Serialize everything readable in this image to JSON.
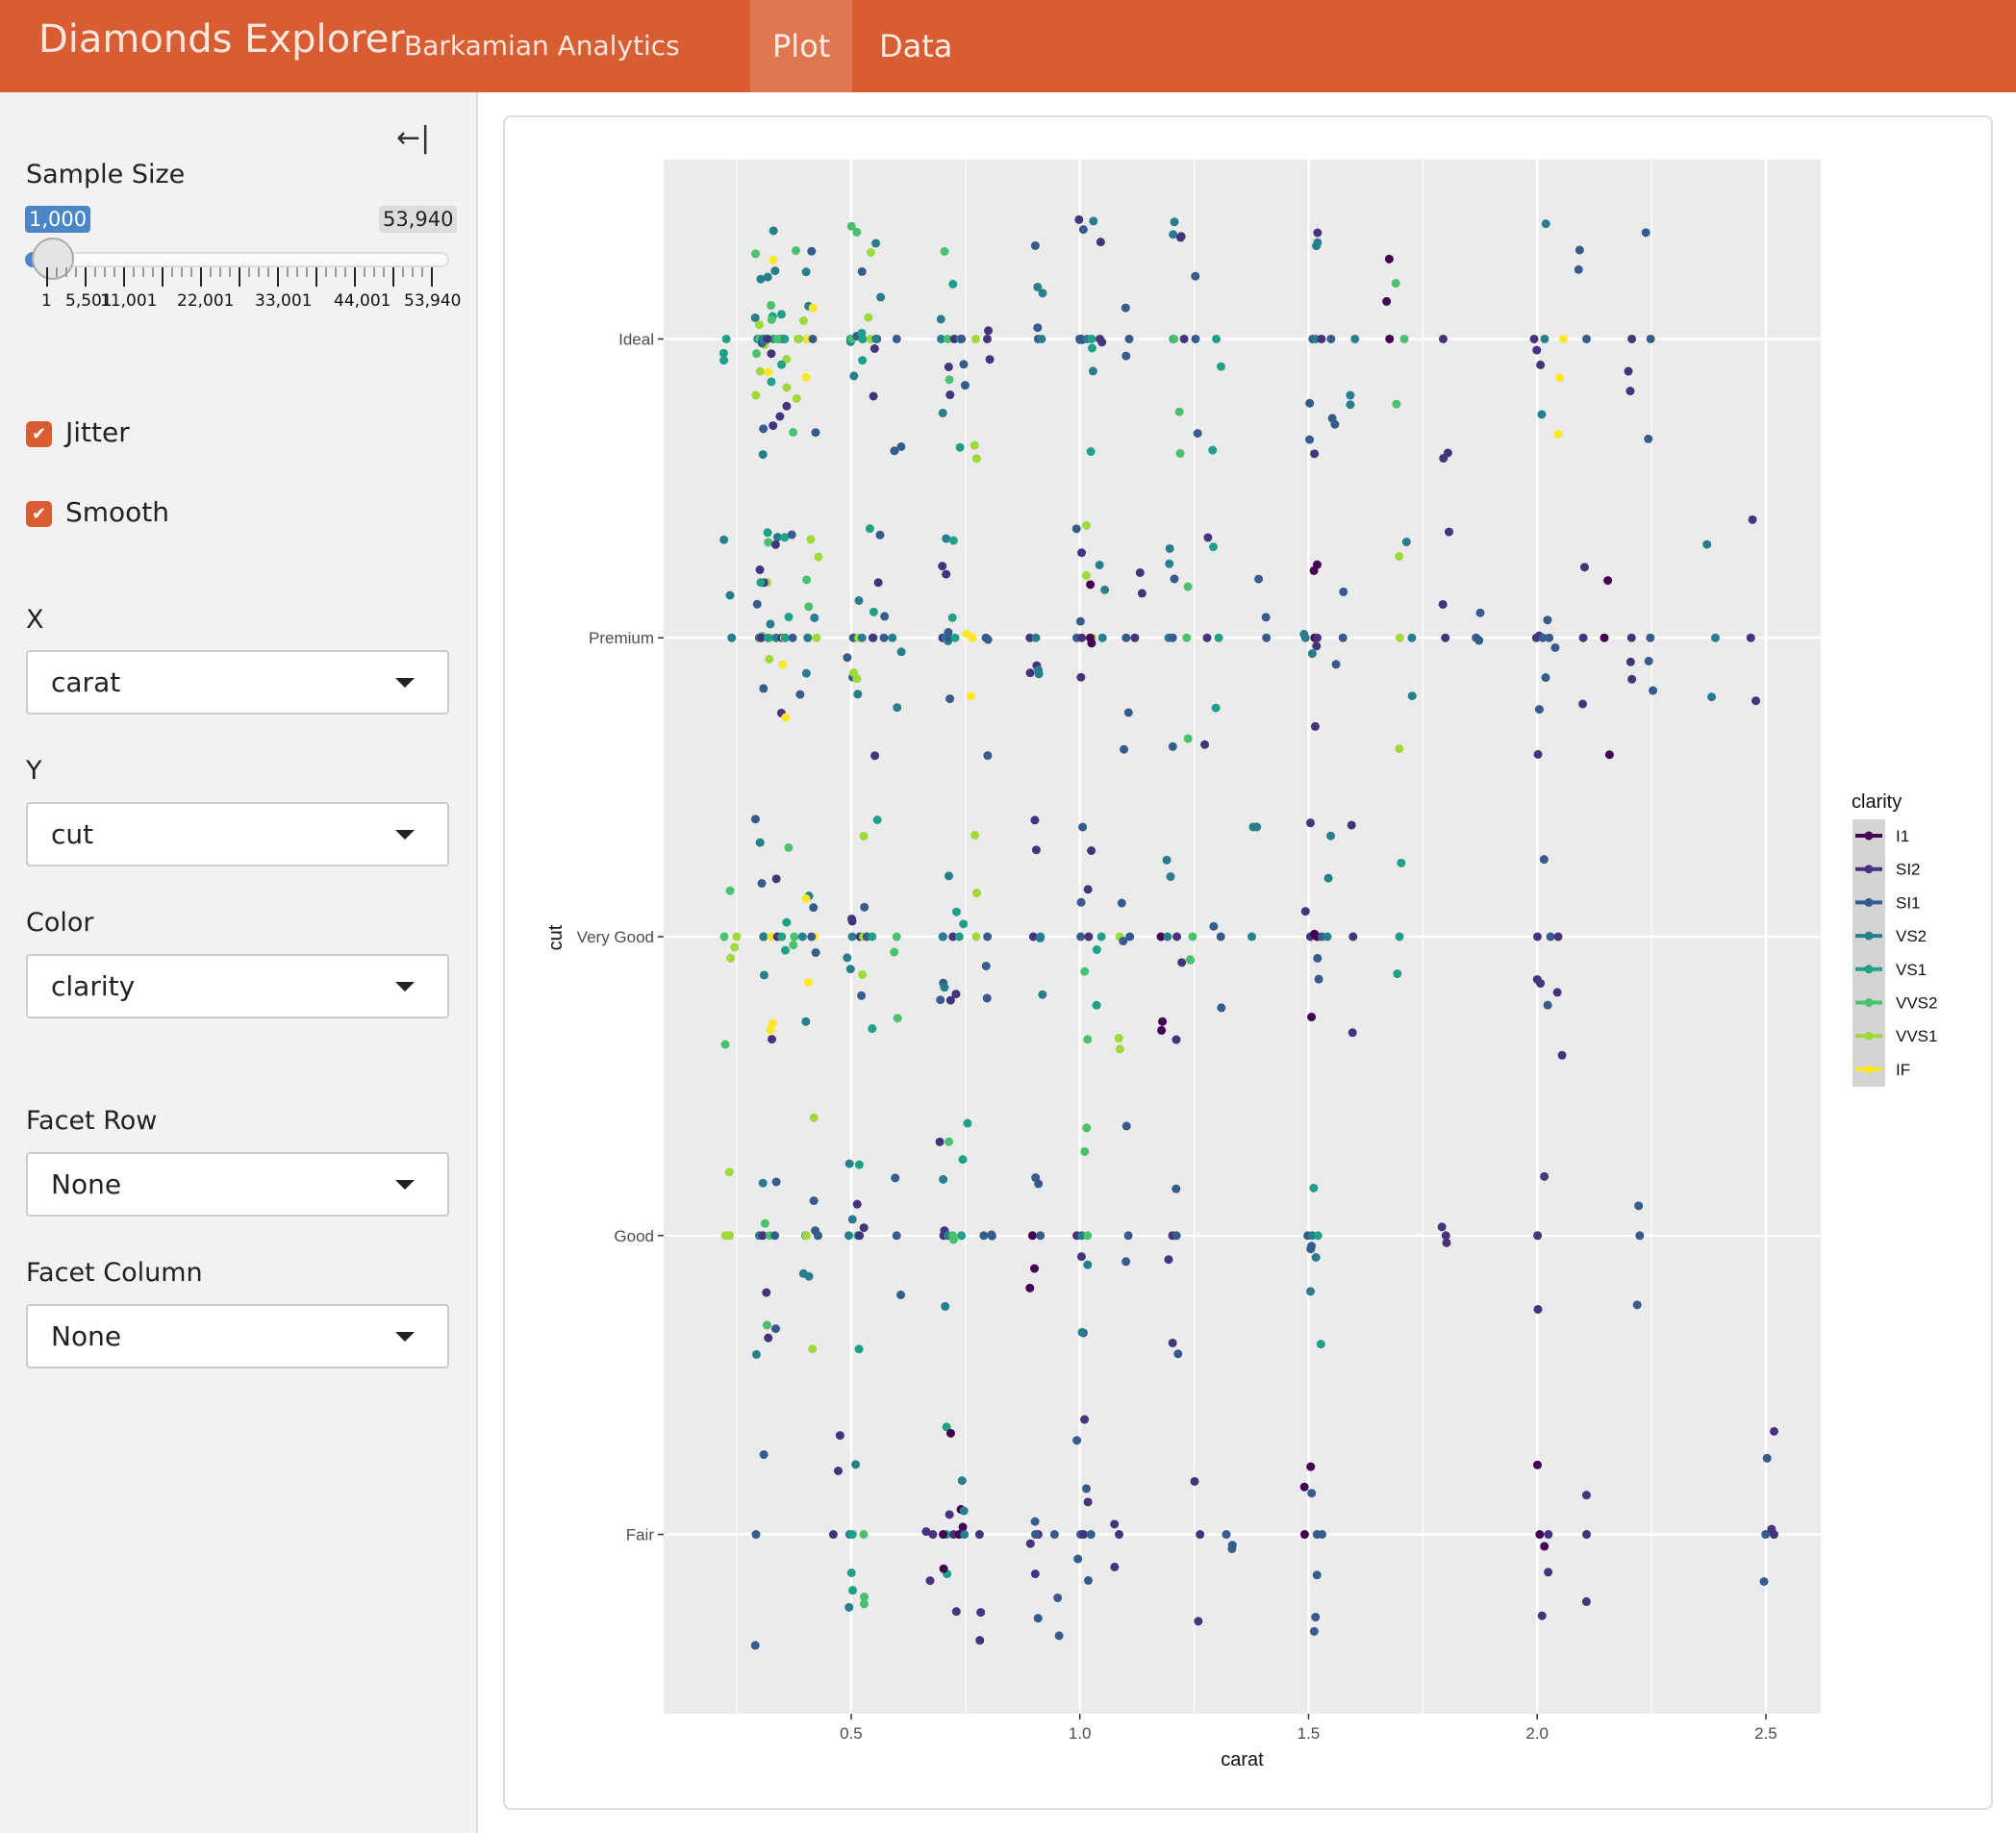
{
  "header": {
    "title": "Diamonds Explorer",
    "subtitle": "Barkamian Analytics",
    "tabs": [
      {
        "label": "Plot",
        "active": true
      },
      {
        "label": "Data",
        "active": false
      }
    ],
    "color": "#D95D33"
  },
  "sidebar": {
    "collapse_icon": "arrow-left-bar-icon",
    "sample_size": {
      "label": "Sample Size",
      "value": "1,000",
      "max": "53,940",
      "min": 1,
      "max_value": 53940,
      "current": 1000,
      "tick_labels": [
        "1",
        "5,501",
        "11,001",
        "22,001",
        "33,001",
        "44,001",
        "53,940"
      ]
    },
    "jitter": {
      "label": "Jitter",
      "checked": true
    },
    "smooth": {
      "label": "Smooth",
      "checked": true
    },
    "x": {
      "label": "X",
      "value": "carat"
    },
    "y": {
      "label": "Y",
      "value": "cut"
    },
    "color": {
      "label": "Color",
      "value": "clarity"
    },
    "facet_row": {
      "label": "Facet Row",
      "value": "None"
    },
    "facet_col": {
      "label": "Facet Column",
      "value": "None"
    }
  },
  "chart_data": {
    "type": "scatter",
    "xlabel": "carat",
    "ylabel": "cut",
    "xlim": [
      0.09,
      2.62
    ],
    "x_ticks": [
      "0.5",
      "1.0",
      "1.5",
      "2.0",
      "2.5"
    ],
    "categories": [
      "Fair",
      "Good",
      "Very Good",
      "Premium",
      "Ideal"
    ],
    "jitter": true,
    "grid": true,
    "legend_position": "right",
    "legend_title": "clarity",
    "legend": [
      "I1",
      "SI2",
      "SI1",
      "VS2",
      "VS1",
      "VVS2",
      "VVS1",
      "IF"
    ],
    "colors": [
      "#440154",
      "#46337E",
      "#365C8D",
      "#277F8E",
      "#1FA187",
      "#4AC16D",
      "#9FDA3A",
      "#FDE725"
    ],
    "points": {
      "Ideal": [
        [
          0.23,
          4
        ],
        [
          0.3,
          3
        ],
        [
          0.3,
          5
        ],
        [
          0.31,
          6
        ],
        [
          0.31,
          2
        ],
        [
          0.32,
          7
        ],
        [
          0.33,
          4
        ],
        [
          0.34,
          3
        ],
        [
          0.35,
          1
        ],
        [
          0.36,
          6
        ],
        [
          0.38,
          5
        ],
        [
          0.4,
          3
        ],
        [
          0.41,
          7
        ],
        [
          0.42,
          2
        ],
        [
          0.3,
          6
        ],
        [
          0.31,
          3
        ],
        [
          0.32,
          1
        ],
        [
          0.33,
          5
        ],
        [
          0.35,
          4
        ],
        [
          0.39,
          6
        ],
        [
          0.5,
          3
        ],
        [
          0.51,
          5
        ],
        [
          0.52,
          2
        ],
        [
          0.53,
          4
        ],
        [
          0.54,
          6
        ],
        [
          0.55,
          1
        ],
        [
          0.56,
          3
        ],
        [
          0.6,
          2
        ],
        [
          0.7,
          3
        ],
        [
          0.71,
          5
        ],
        [
          0.72,
          1
        ],
        [
          0.73,
          4
        ],
        [
          0.75,
          2
        ],
        [
          0.77,
          6
        ],
        [
          0.8,
          1
        ],
        [
          0.9,
          2
        ],
        [
          0.91,
          3
        ],
        [
          1.0,
          1
        ],
        [
          1.01,
          2
        ],
        [
          1.02,
          3
        ],
        [
          1.03,
          4
        ],
        [
          1.05,
          1
        ],
        [
          1.1,
          2
        ],
        [
          1.2,
          3
        ],
        [
          1.21,
          5
        ],
        [
          1.22,
          1
        ],
        [
          1.25,
          2
        ],
        [
          1.3,
          4
        ],
        [
          1.5,
          2
        ],
        [
          1.51,
          3
        ],
        [
          1.52,
          1
        ],
        [
          1.55,
          2
        ],
        [
          1.6,
          3
        ],
        [
          1.67,
          0
        ],
        [
          1.7,
          5
        ],
        [
          1.8,
          1
        ],
        [
          2.0,
          1
        ],
        [
          2.01,
          3
        ],
        [
          2.05,
          7
        ],
        [
          2.1,
          2
        ],
        [
          2.2,
          1
        ],
        [
          2.24,
          2
        ]
      ],
      "Premium": [
        [
          0.23,
          3
        ],
        [
          0.3,
          2
        ],
        [
          0.31,
          5
        ],
        [
          0.32,
          6
        ],
        [
          0.33,
          3
        ],
        [
          0.34,
          1
        ],
        [
          0.35,
          7
        ],
        [
          0.36,
          4
        ],
        [
          0.38,
          2
        ],
        [
          0.4,
          5
        ],
        [
          0.41,
          3
        ],
        [
          0.42,
          6
        ],
        [
          0.3,
          1
        ],
        [
          0.31,
          4
        ],
        [
          0.5,
          2
        ],
        [
          0.51,
          6
        ],
        [
          0.52,
          3
        ],
        [
          0.54,
          4
        ],
        [
          0.55,
          1
        ],
        [
          0.57,
          2
        ],
        [
          0.6,
          3
        ],
        [
          0.7,
          1
        ],
        [
          0.71,
          3
        ],
        [
          0.72,
          2
        ],
        [
          0.73,
          4
        ],
        [
          0.76,
          7
        ],
        [
          0.8,
          2
        ],
        [
          0.9,
          1
        ],
        [
          0.91,
          3
        ],
        [
          1.0,
          2
        ],
        [
          1.01,
          1
        ],
        [
          1.02,
          6
        ],
        [
          1.03,
          0
        ],
        [
          1.05,
          3
        ],
        [
          1.1,
          2
        ],
        [
          1.13,
          1
        ],
        [
          1.2,
          3
        ],
        [
          1.21,
          2
        ],
        [
          1.23,
          5
        ],
        [
          1.28,
          1
        ],
        [
          1.3,
          4
        ],
        [
          1.4,
          2
        ],
        [
          1.5,
          3
        ],
        [
          1.51,
          0
        ],
        [
          1.52,
          1
        ],
        [
          1.57,
          2
        ],
        [
          1.7,
          6
        ],
        [
          1.72,
          3
        ],
        [
          1.8,
          1
        ],
        [
          1.87,
          2
        ],
        [
          2.0,
          1
        ],
        [
          2.01,
          2
        ],
        [
          2.03,
          2
        ],
        [
          2.1,
          1
        ],
        [
          2.15,
          0
        ],
        [
          2.2,
          1
        ],
        [
          2.25,
          2
        ],
        [
          2.38,
          3
        ],
        [
          2.47,
          1
        ]
      ],
      "Very Good": [
        [
          0.23,
          5
        ],
        [
          0.24,
          6
        ],
        [
          0.3,
          2
        ],
        [
          0.31,
          3
        ],
        [
          0.32,
          7
        ],
        [
          0.33,
          1
        ],
        [
          0.35,
          4
        ],
        [
          0.37,
          5
        ],
        [
          0.4,
          3
        ],
        [
          0.41,
          7
        ],
        [
          0.42,
          2
        ],
        [
          0.5,
          3
        ],
        [
          0.51,
          1
        ],
        [
          0.52,
          6
        ],
        [
          0.53,
          2
        ],
        [
          0.55,
          4
        ],
        [
          0.6,
          5
        ],
        [
          0.7,
          2
        ],
        [
          0.71,
          3
        ],
        [
          0.72,
          1
        ],
        [
          0.74,
          4
        ],
        [
          0.78,
          6
        ],
        [
          0.8,
          2
        ],
        [
          0.9,
          1
        ],
        [
          0.91,
          3
        ],
        [
          1.0,
          2
        ],
        [
          1.01,
          5
        ],
        [
          1.02,
          1
        ],
        [
          1.04,
          4
        ],
        [
          1.09,
          6
        ],
        [
          1.1,
          2
        ],
        [
          1.18,
          0
        ],
        [
          1.2,
          3
        ],
        [
          1.22,
          1
        ],
        [
          1.25,
          5
        ],
        [
          1.3,
          2
        ],
        [
          1.38,
          3
        ],
        [
          1.5,
          1
        ],
        [
          1.51,
          0
        ],
        [
          1.52,
          2
        ],
        [
          1.55,
          3
        ],
        [
          1.6,
          1
        ],
        [
          1.7,
          4
        ],
        [
          2.0,
          1
        ],
        [
          2.02,
          2
        ],
        [
          2.05,
          1
        ]
      ],
      "Good": [
        [
          0.23,
          6
        ],
        [
          0.3,
          3
        ],
        [
          0.31,
          1
        ],
        [
          0.32,
          5
        ],
        [
          0.34,
          2
        ],
        [
          0.4,
          3
        ],
        [
          0.41,
          6
        ],
        [
          0.42,
          2
        ],
        [
          0.5,
          3
        ],
        [
          0.51,
          4
        ],
        [
          0.52,
          1
        ],
        [
          0.6,
          2
        ],
        [
          0.7,
          1
        ],
        [
          0.71,
          3
        ],
        [
          0.72,
          5
        ],
        [
          0.75,
          4
        ],
        [
          0.8,
          2
        ],
        [
          0.9,
          0
        ],
        [
          0.91,
          2
        ],
        [
          1.0,
          1
        ],
        [
          1.01,
          3
        ],
        [
          1.02,
          5
        ],
        [
          1.1,
          2
        ],
        [
          1.2,
          1
        ],
        [
          1.22,
          2
        ],
        [
          1.5,
          2
        ],
        [
          1.51,
          3
        ],
        [
          1.52,
          4
        ],
        [
          1.8,
          1
        ],
        [
          2.01,
          1
        ],
        [
          2.22,
          2
        ]
      ],
      "Fair": [
        [
          0.3,
          2
        ],
        [
          0.47,
          1
        ],
        [
          0.5,
          3
        ],
        [
          0.51,
          4
        ],
        [
          0.52,
          5
        ],
        [
          0.67,
          1
        ],
        [
          0.7,
          4
        ],
        [
          0.71,
          0
        ],
        [
          0.72,
          1
        ],
        [
          0.74,
          0
        ],
        [
          0.75,
          3
        ],
        [
          0.78,
          1
        ],
        [
          0.9,
          1
        ],
        [
          0.91,
          2
        ],
        [
          0.95,
          2
        ],
        [
          1.0,
          2
        ],
        [
          1.01,
          1
        ],
        [
          1.02,
          2
        ],
        [
          1.08,
          1
        ],
        [
          1.26,
          1
        ],
        [
          1.33,
          2
        ],
        [
          1.5,
          0
        ],
        [
          1.51,
          2
        ],
        [
          1.52,
          2
        ],
        [
          2.01,
          0
        ],
        [
          2.02,
          1
        ],
        [
          2.1,
          1
        ],
        [
          2.5,
          2
        ],
        [
          2.51,
          1
        ]
      ]
    }
  }
}
